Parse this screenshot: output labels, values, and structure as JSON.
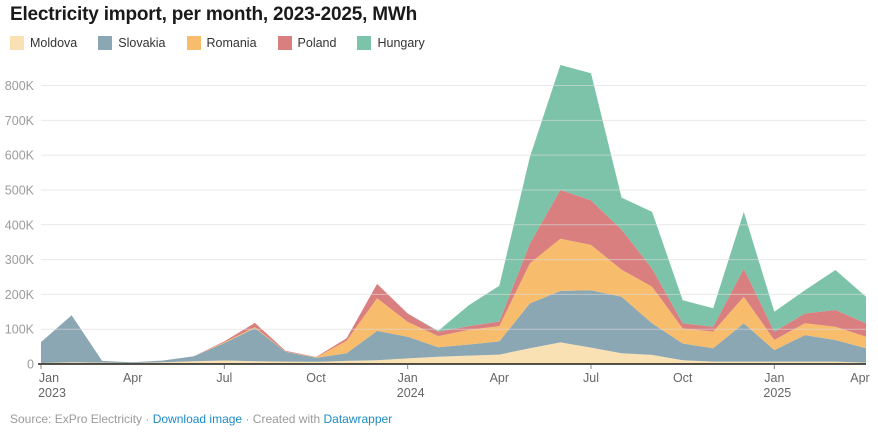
{
  "header": {
    "title": "Electricity import, per month, 2023-2025, MWh"
  },
  "chart_data": {
    "type": "area",
    "stacked": true,
    "title": "Electricity import, per month, 2023-2025, MWh",
    "ylabel": "MWh",
    "xlabel": "",
    "grid": "horizontal",
    "legend_position": "top-left",
    "ylim": [
      0,
      800000
    ],
    "x": [
      "Jan 2023",
      "Feb 2023",
      "Mar 2023",
      "Apr 2023",
      "May 2023",
      "Jun 2023",
      "Jul 2023",
      "Aug 2023",
      "Sep 2023",
      "Oct 2023",
      "Nov 2023",
      "Dec 2023",
      "Jan 2024",
      "Feb 2024",
      "Mar 2024",
      "Apr 2024",
      "May 2024",
      "Jun 2024",
      "Jul 2024",
      "Aug 2024",
      "Sep 2024",
      "Oct 2024",
      "Nov 2024",
      "Dec 2024",
      "Jan 2025",
      "Feb 2025",
      "Mar 2025",
      "Apr 2025"
    ],
    "series": [
      {
        "name": "Moldova",
        "color": "#fae1b4",
        "values": [
          3000,
          5000,
          4000,
          3000,
          5000,
          8000,
          10000,
          8000,
          7000,
          6000,
          9000,
          11000,
          16000,
          21000,
          24000,
          27000,
          45000,
          62000,
          47000,
          31000,
          26000,
          11000,
          7000,
          7000,
          7000,
          7000,
          7000,
          4000
        ]
      },
      {
        "name": "Slovakia",
        "color": "#8ba7b4",
        "values": [
          60000,
          135000,
          5000,
          2000,
          5000,
          14000,
          50000,
          95000,
          28000,
          12000,
          22000,
          84000,
          62000,
          27000,
          32000,
          38000,
          129000,
          148000,
          165000,
          162000,
          91000,
          48000,
          38000,
          110000,
          33000,
          76000,
          62000,
          41000
        ]
      },
      {
        "name": "Romania",
        "color": "#f8bd6c",
        "values": [
          0,
          0,
          0,
          0,
          0,
          0,
          2000,
          3000,
          1000,
          1000,
          36000,
          94000,
          43000,
          32000,
          42000,
          44000,
          115000,
          150000,
          130000,
          78000,
          105000,
          43000,
          48000,
          76000,
          29000,
          34000,
          38000,
          33000
        ]
      },
      {
        "name": "Poland",
        "color": "#da7f80",
        "values": [
          0,
          0,
          0,
          0,
          0,
          0,
          3000,
          12000,
          2000,
          1000,
          7000,
          41000,
          24000,
          13000,
          11000,
          13000,
          57000,
          140000,
          128000,
          115000,
          52000,
          15000,
          14000,
          81000,
          24000,
          28000,
          48000,
          39000
        ]
      },
      {
        "name": "Hungary",
        "color": "#7cc3a9",
        "values": [
          0,
          0,
          0,
          0,
          0,
          0,
          0,
          0,
          0,
          0,
          0,
          0,
          0,
          2000,
          60000,
          103000,
          249000,
          359000,
          365000,
          92000,
          163000,
          66000,
          53000,
          163000,
          57000,
          67000,
          115000,
          76000
        ]
      }
    ],
    "yticks": [
      {
        "v": 0,
        "label": "0"
      },
      {
        "v": 100000,
        "label": "100K"
      },
      {
        "v": 200000,
        "label": "200K"
      },
      {
        "v": 300000,
        "label": "300K"
      },
      {
        "v": 400000,
        "label": "400K"
      },
      {
        "v": 500000,
        "label": "500K"
      },
      {
        "v": 600000,
        "label": "600K"
      },
      {
        "v": 700000,
        "label": "700K"
      },
      {
        "v": 800000,
        "label": "800K"
      }
    ],
    "xticks": [
      {
        "i": 0,
        "label": "Jan",
        "year": "2023",
        "tick": true
      },
      {
        "i": 3,
        "label": "Apr"
      },
      {
        "i": 6,
        "label": "Jul",
        "tick": true
      },
      {
        "i": 9,
        "label": "Oct"
      },
      {
        "i": 12,
        "label": "Jan",
        "year": "2024",
        "tick": true
      },
      {
        "i": 15,
        "label": "Apr"
      },
      {
        "i": 18,
        "label": "Jul",
        "tick": true
      },
      {
        "i": 21,
        "label": "Oct"
      },
      {
        "i": 24,
        "label": "Jan",
        "year": "2025",
        "tick": true
      },
      {
        "i": 27,
        "label": "Apr"
      }
    ]
  },
  "colors": {
    "grid": "#dcdcdc",
    "axis_line": "#1a1a1a",
    "y_label": "#9b9b9b",
    "x_label": "#666666",
    "link": "#1e8bc3"
  },
  "footer": {
    "source": "Source: ExPro Electricity",
    "sep1": " · ",
    "download_label": "Download image",
    "sep2": " · ",
    "created_with": "Created with ",
    "tool": "Datawrapper"
  }
}
